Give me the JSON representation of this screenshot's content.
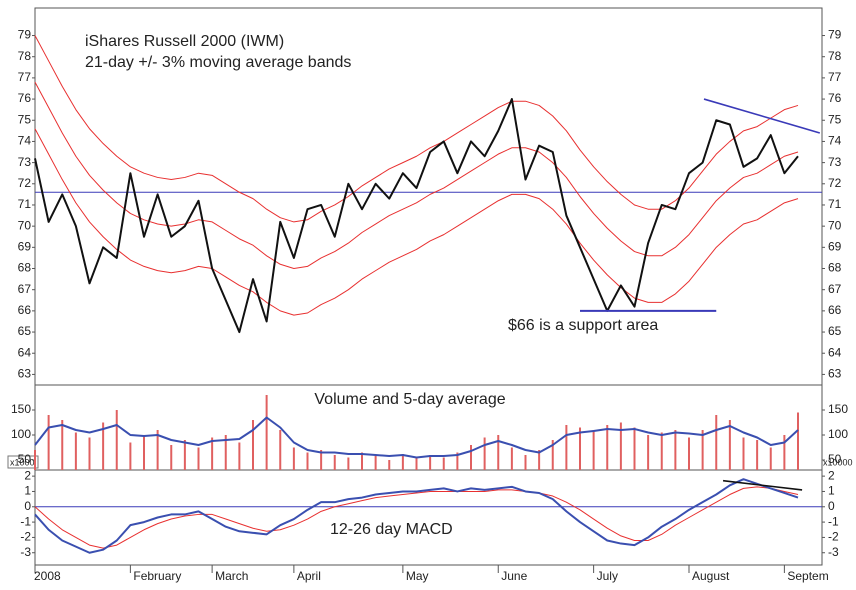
{
  "chart_data": [
    {
      "type": "line",
      "title": "iShares Russell 2000 (IWM)",
      "subtitle": "21-day +/- 3% moving average bands",
      "annotation": "$66 is a support area",
      "ylim": [
        62.5,
        80.3
      ],
      "yticks": [
        63,
        64,
        65,
        66,
        67,
        68,
        69,
        70,
        71,
        72,
        73,
        74,
        75,
        76,
        77,
        78,
        79
      ],
      "hline": 71.6,
      "hline_color": "#3a3ab8",
      "support": {
        "value": 66,
        "from": 40,
        "to": 50,
        "color": "#3a3ab8"
      },
      "trend": {
        "x": [
          49.1,
          57.6
        ],
        "y": [
          76.0,
          74.4
        ],
        "color": "#3a3ab8"
      },
      "series": [
        {
          "color": "#111111",
          "values": [
            73.2,
            70.2,
            71.5,
            70,
            67.3,
            69,
            68.5,
            72.5,
            69.5,
            71.5,
            69.5,
            70,
            71.2,
            68,
            66.5,
            65,
            67.5,
            65.5,
            70.2,
            68.5,
            70.8,
            71,
            69.5,
            72,
            70.8,
            72,
            71.3,
            72.5,
            71.8,
            73.5,
            74,
            72.5,
            74,
            73.3,
            74.5,
            76.0,
            72.2,
            73.8,
            73.5,
            70.5,
            69,
            67.5,
            66,
            67.2,
            66.2,
            69.2,
            71,
            70.8,
            72.5,
            73,
            75,
            74.8,
            72.8,
            73.2,
            74.3,
            72.5,
            73.3
          ]
        },
        {
          "color": "#e83030",
          "values": [
            79,
            77.8,
            76.6,
            75.5,
            74.6,
            73.9,
            73.3,
            72.8,
            72.5,
            72.3,
            72.2,
            72.3,
            72.5,
            72.4,
            72.0,
            71.6,
            71.3,
            70.8,
            70.4,
            70.2,
            70.3,
            70.7,
            71.0,
            71.4,
            71.9,
            72.3,
            72.7,
            73.0,
            73.3,
            73.7,
            74.0,
            74.4,
            74.8,
            75.2,
            75.6,
            75.9,
            75.9,
            75.7,
            75.2,
            74.5,
            73.6,
            72.8,
            72.1,
            71.5,
            71.0,
            70.8,
            70.8,
            71.2,
            71.8,
            72.6,
            73.4,
            74.0,
            74.5,
            74.7,
            75.1,
            75.5,
            75.7
          ]
        },
        {
          "color": "#e83030",
          "values": [
            76.8,
            75.6,
            74.4,
            73.3,
            72.4,
            71.7,
            71.1,
            70.6,
            70.3,
            70.1,
            70.0,
            70.1,
            70.3,
            70.2,
            69.8,
            69.4,
            69.1,
            68.6,
            68.2,
            68.0,
            68.1,
            68.5,
            68.8,
            69.2,
            69.7,
            70.1,
            70.5,
            70.8,
            71.1,
            71.5,
            71.8,
            72.2,
            72.6,
            73.0,
            73.4,
            73.7,
            73.7,
            73.5,
            73.0,
            72.3,
            71.4,
            70.6,
            69.9,
            69.3,
            68.8,
            68.6,
            68.6,
            69.0,
            69.6,
            70.4,
            71.2,
            71.8,
            72.3,
            72.5,
            72.9,
            73.3,
            73.5
          ]
        },
        {
          "color": "#e83030",
          "values": [
            74.6,
            73.4,
            72.2,
            71.1,
            70.2,
            69.5,
            68.9,
            68.4,
            68.1,
            67.9,
            67.8,
            67.9,
            68.1,
            68.0,
            67.6,
            67.2,
            66.9,
            66.4,
            66.0,
            65.8,
            65.9,
            66.3,
            66.6,
            67.0,
            67.5,
            67.9,
            68.3,
            68.6,
            68.9,
            69.3,
            69.6,
            70.0,
            70.4,
            70.8,
            71.2,
            71.5,
            71.5,
            71.3,
            70.8,
            70.1,
            69.2,
            68.4,
            67.7,
            67.1,
            66.6,
            66.4,
            66.4,
            66.8,
            67.4,
            68.2,
            69.0,
            69.6,
            70.1,
            70.3,
            70.7,
            71.1,
            71.3
          ]
        }
      ]
    },
    {
      "type": "bar",
      "title": "Volume and 5-day average",
      "unit_left": "x1000",
      "unit_right": "x10000",
      "ylim": [
        30,
        200
      ],
      "yticks": [
        50,
        100,
        150
      ],
      "color": "#e06060",
      "values": [
        70,
        140,
        130,
        105,
        95,
        125,
        150,
        85,
        100,
        110,
        80,
        90,
        75,
        95,
        100,
        85,
        130,
        180,
        110,
        75,
        65,
        70,
        60,
        55,
        65,
        58,
        50,
        62,
        55,
        60,
        55,
        65,
        80,
        95,
        100,
        75,
        60,
        70,
        90,
        120,
        115,
        110,
        120,
        125,
        115,
        100,
        105,
        110,
        95,
        110,
        140,
        130,
        95,
        90,
        75,
        100,
        145
      ],
      "series": [
        {
          "color": "#3a4fb0",
          "values": [
            80,
            115,
            120,
            110,
            105,
            112,
            120,
            100,
            98,
            100,
            90,
            85,
            80,
            88,
            90,
            92,
            110,
            135,
            115,
            85,
            70,
            65,
            65,
            62,
            62,
            60,
            58,
            60,
            55,
            58,
            58,
            60,
            68,
            80,
            88,
            80,
            70,
            65,
            80,
            100,
            105,
            108,
            112,
            110,
            112,
            105,
            100,
            105,
            103,
            100,
            110,
            118,
            105,
            95,
            80,
            85,
            110
          ]
        }
      ]
    },
    {
      "type": "line",
      "title": "12-26 day MACD",
      "ylim": [
        -3.8,
        2.4
      ],
      "yticks": [
        -3,
        -2,
        -1,
        0,
        1,
        2
      ],
      "hline": 0,
      "hline_color": "#3a3ab8",
      "trend": {
        "x": [
          50.5,
          56.3
        ],
        "y": [
          1.7,
          1.1
        ],
        "color": "#111111"
      },
      "categories": [
        "2008",
        null,
        null,
        null,
        null,
        null,
        null,
        "February",
        null,
        null,
        null,
        null,
        null,
        "March",
        null,
        null,
        null,
        null,
        null,
        "April",
        null,
        null,
        null,
        null,
        null,
        null,
        null,
        "May",
        null,
        null,
        null,
        null,
        null,
        null,
        "June",
        null,
        null,
        null,
        null,
        null,
        null,
        "July",
        null,
        null,
        null,
        null,
        null,
        null,
        "August",
        null,
        null,
        null,
        null,
        null,
        null,
        "Septem",
        null
      ],
      "series": [
        {
          "color": "#3a4fb0",
          "values": [
            -0.5,
            -1.5,
            -2.2,
            -2.6,
            -3.0,
            -2.8,
            -2.2,
            -1.2,
            -1.0,
            -0.7,
            -0.5,
            -0.5,
            -0.3,
            -0.8,
            -1.3,
            -1.6,
            -1.7,
            -1.8,
            -1.2,
            -0.8,
            -0.2,
            0.3,
            0.3,
            0.5,
            0.6,
            0.8,
            0.9,
            1.0,
            1.0,
            1.1,
            1.2,
            1.0,
            1.2,
            1.1,
            1.2,
            1.3,
            1.0,
            0.9,
            0.5,
            -0.3,
            -1.0,
            -1.6,
            -2.2,
            -2.4,
            -2.5,
            -2.0,
            -1.3,
            -0.8,
            -0.2,
            0.3,
            0.8,
            1.4,
            1.8,
            1.5,
            1.2,
            0.9,
            0.6
          ]
        },
        {
          "color": "#e83030",
          "values": [
            0.0,
            -0.8,
            -1.5,
            -2.0,
            -2.5,
            -2.7,
            -2.5,
            -2.0,
            -1.5,
            -1.1,
            -0.8,
            -0.6,
            -0.5,
            -0.5,
            -0.8,
            -1.1,
            -1.4,
            -1.6,
            -1.5,
            -1.2,
            -0.8,
            -0.3,
            0.0,
            0.2,
            0.4,
            0.6,
            0.7,
            0.8,
            0.9,
            1.0,
            1.0,
            1.0,
            1.0,
            1.0,
            1.1,
            1.1,
            1.0,
            0.9,
            0.7,
            0.3,
            -0.2,
            -0.8,
            -1.4,
            -1.9,
            -2.2,
            -2.2,
            -1.8,
            -1.2,
            -0.7,
            -0.2,
            0.3,
            0.8,
            1.2,
            1.3,
            1.2,
            1.0,
            0.8
          ]
        }
      ]
    }
  ]
}
